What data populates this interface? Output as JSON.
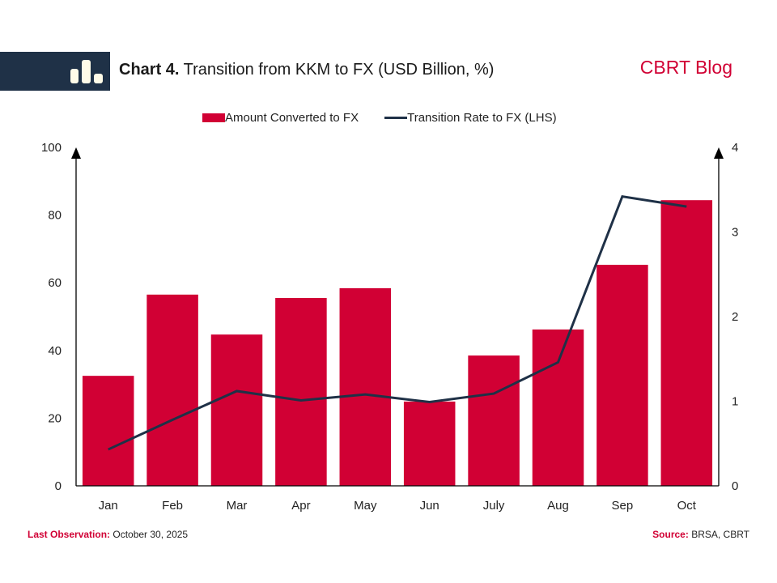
{
  "header": {
    "title_bold": "Chart 4.",
    "title_rest": " Transition from KKM to FX (USD Billion, %)",
    "brand": "CBRT Blog",
    "logo_icon": "bar-chart-icon"
  },
  "legend": {
    "bar_label": "Amount Converted to FX",
    "line_label": "Transition Rate to FX (LHS)"
  },
  "footer": {
    "last_obs_label": "Last Observation:",
    "last_obs_value": " October 30, 2025",
    "source_label": "Source:",
    "source_value": " BRSA, CBRT"
  },
  "colors": {
    "bar": "#d10034",
    "line": "#1f3147",
    "header_band": "#1f3147",
    "accent_text": "#d10034"
  },
  "chart_data": {
    "type": "bar",
    "title": "Chart 4. Transition from KKM to FX (USD Billion, %)",
    "categories": [
      "Jan",
      "Feb",
      "Mar",
      "Apr",
      "May",
      "Jun",
      "July",
      "Aug",
      "Sep",
      "Oct"
    ],
    "series": [
      {
        "name": "Amount Converted to FX",
        "type": "bar",
        "axis": "left",
        "values": [
          32.5,
          56.5,
          44.7,
          55.5,
          58.4,
          24.9,
          38.5,
          46.2,
          65.3,
          84.4
        ]
      },
      {
        "name": "Transition Rate to FX (LHS)",
        "type": "line",
        "axis": "right",
        "values": [
          0.43,
          0.78,
          1.12,
          1.01,
          1.08,
          0.99,
          1.09,
          1.46,
          3.42,
          3.3
        ]
      }
    ],
    "left_axis": {
      "ylim": [
        0,
        100
      ],
      "ticks": [
        0,
        20,
        40,
        60,
        80,
        100
      ]
    },
    "right_axis": {
      "ylim": [
        0,
        4
      ],
      "ticks": [
        0,
        1,
        2,
        3,
        4
      ]
    },
    "xlabel": "",
    "ylabel": "",
    "grid": false,
    "legend_position": "top-center"
  }
}
